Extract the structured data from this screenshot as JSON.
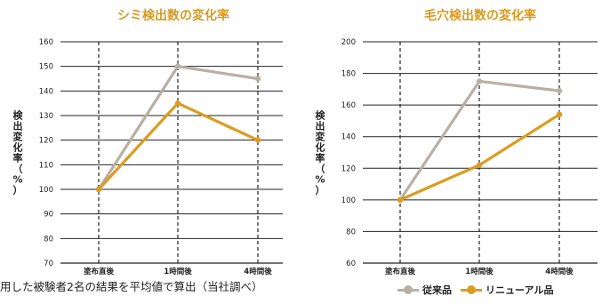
{
  "colors": {
    "conventional": "#b8b0a4",
    "renewal": "#dc9c1e",
    "title": "#d99a1e"
  },
  "chart_data": [
    {
      "type": "line",
      "title": "シミ検出数の変化率",
      "ylabel": "検出変化率（%）",
      "categories": [
        "塗布直後",
        "1時間後",
        "4時間後"
      ],
      "ylim": [
        70,
        160
      ],
      "yticks": [
        70,
        80,
        90,
        100,
        110,
        120,
        130,
        140,
        150,
        160
      ],
      "series": [
        {
          "name": "従来品",
          "values": [
            100,
            150,
            145
          ],
          "color": "#b8b0a4"
        },
        {
          "name": "リニューアル品",
          "values": [
            100,
            135,
            120
          ],
          "color": "#dc9c1e"
        }
      ],
      "grid": true
    },
    {
      "type": "line",
      "title": "毛穴検出数の変化率",
      "ylabel": "検出変化率（%）",
      "categories": [
        "塗布直後",
        "1時間後",
        "4時間後"
      ],
      "ylim": [
        60,
        200
      ],
      "yticks": [
        60,
        80,
        100,
        120,
        140,
        160,
        180,
        200
      ],
      "series": [
        {
          "name": "従来品",
          "values": [
            100,
            175,
            169
          ],
          "color": "#b8b0a4"
        },
        {
          "name": "リニューアル品",
          "values": [
            100,
            122,
            154
          ],
          "color": "#dc9c1e"
        }
      ],
      "grid": true
    }
  ],
  "footnote": "用した被験者2名の結果を平均値で算出（当社調べ）",
  "legend": [
    {
      "label": "従来品",
      "color": "#b8b0a4"
    },
    {
      "label": "リニューアル品",
      "color": "#dc9c1e"
    }
  ]
}
